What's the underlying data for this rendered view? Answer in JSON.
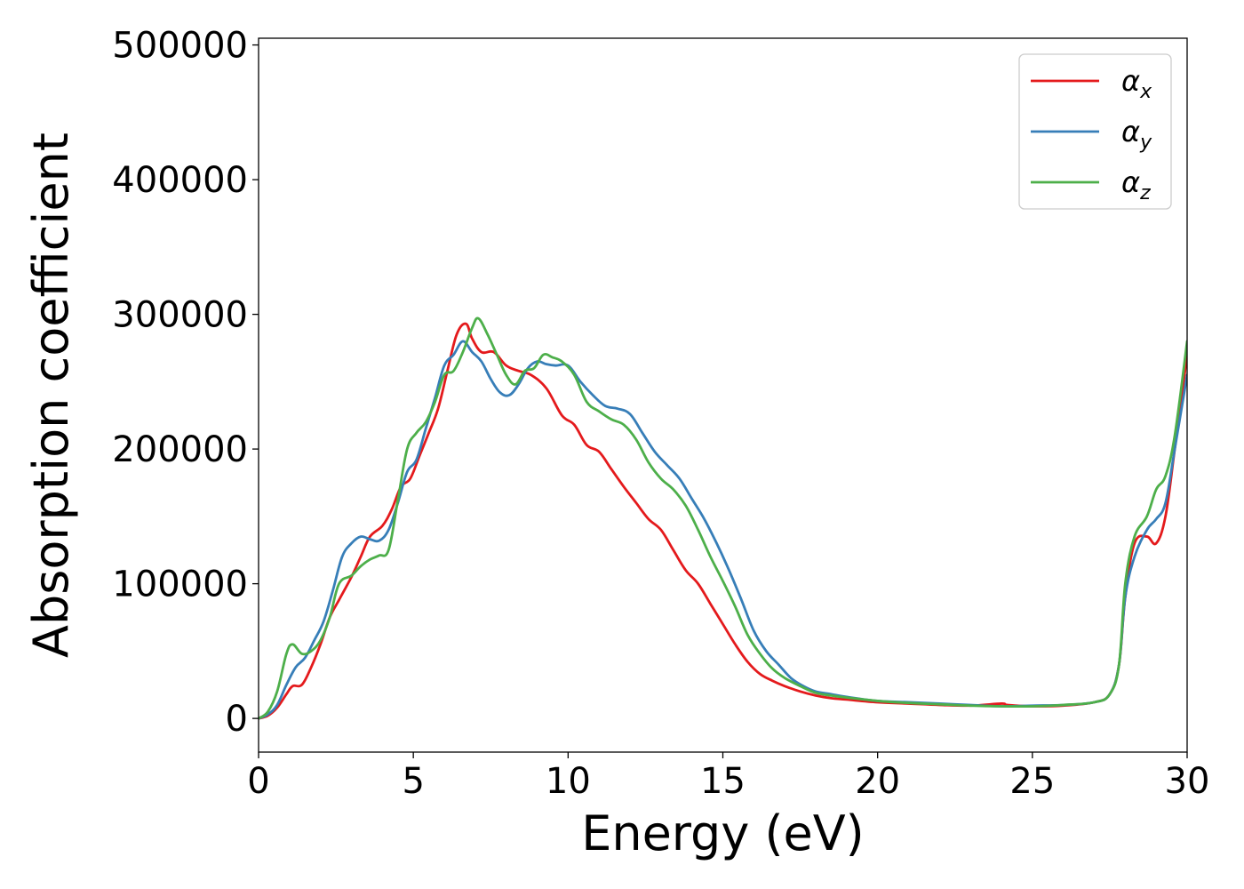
{
  "chart_data": {
    "type": "line",
    "xlabel": "Energy (eV)",
    "ylabel": "Absorption coefficient",
    "xlim": [
      0,
      30
    ],
    "ylim": [
      -25000,
      505000
    ],
    "xticks": [
      0,
      5,
      10,
      15,
      20,
      25,
      30
    ],
    "xtick_labels": [
      "0",
      "5",
      "10",
      "15",
      "20",
      "25",
      "30"
    ],
    "yticks": [
      0,
      100000,
      200000,
      300000,
      400000,
      500000
    ],
    "ytick_labels": [
      "0",
      "100000",
      "200000",
      "300000",
      "400000",
      "500000"
    ],
    "grid": false,
    "legend_position": "top-right",
    "series": [
      {
        "name": "α",
        "subscript": "x",
        "color": "#e41a1c",
        "x": [
          0,
          0.3,
          0.6,
          0.9,
          1.1,
          1.4,
          1.7,
          2.0,
          2.3,
          2.6,
          3.0,
          3.3,
          3.6,
          4.0,
          4.3,
          4.6,
          4.9,
          5.2,
          5.5,
          5.8,
          6.1,
          6.4,
          6.7,
          6.9,
          7.2,
          7.6,
          8.0,
          8.4,
          8.8,
          9.3,
          9.8,
          10.2,
          10.6,
          11.0,
          11.4,
          11.8,
          12.2,
          12.6,
          13.0,
          13.4,
          13.8,
          14.2,
          14.6,
          15.0,
          15.4,
          15.8,
          16.2,
          16.6,
          17.0,
          17.5,
          18.0,
          18.5,
          19.0,
          20.0,
          21.0,
          22.0,
          23.0,
          24.0,
          24.2,
          25.0,
          26.0,
          27.0,
          27.5,
          27.8,
          28.0,
          28.3,
          28.7,
          29.0,
          29.3,
          29.6,
          30.0
        ],
        "values": [
          0,
          2000,
          8000,
          18000,
          24000,
          25000,
          38000,
          55000,
          75000,
          88000,
          105000,
          120000,
          135000,
          143000,
          155000,
          172000,
          178000,
          195000,
          212000,
          230000,
          258000,
          285000,
          293000,
          282000,
          272000,
          272000,
          262000,
          258000,
          255000,
          245000,
          225000,
          218000,
          203000,
          198000,
          185000,
          172000,
          160000,
          148000,
          140000,
          125000,
          110000,
          100000,
          85000,
          70000,
          55000,
          42000,
          33000,
          28000,
          24000,
          20000,
          17000,
          15000,
          14000,
          12000,
          11000,
          10000,
          9500,
          11000,
          10000,
          9000,
          9500,
          12000,
          18000,
          40000,
          90000,
          130000,
          135000,
          130000,
          150000,
          200000,
          270000
        ]
      },
      {
        "name": "α",
        "subscript": "y",
        "color": "#377eb8",
        "x": [
          0,
          0.3,
          0.6,
          0.9,
          1.2,
          1.5,
          1.8,
          2.1,
          2.4,
          2.7,
          3.0,
          3.3,
          3.6,
          3.9,
          4.2,
          4.5,
          4.8,
          5.1,
          5.4,
          5.7,
          6.0,
          6.3,
          6.6,
          6.9,
          7.2,
          7.5,
          7.8,
          8.1,
          8.4,
          8.7,
          9.0,
          9.3,
          9.6,
          10.0,
          10.4,
          10.8,
          11.2,
          11.6,
          12.0,
          12.4,
          12.8,
          13.2,
          13.6,
          14.0,
          14.4,
          14.8,
          15.2,
          15.6,
          16.0,
          16.4,
          16.8,
          17.2,
          17.6,
          18.0,
          18.5,
          19.0,
          20.0,
          21.0,
          22.0,
          23.0,
          24.0,
          25.0,
          26.0,
          27.0,
          27.5,
          27.8,
          28.0,
          28.3,
          28.7,
          29.0,
          29.3,
          29.6,
          30.0
        ],
        "values": [
          0,
          3000,
          10000,
          25000,
          38000,
          45000,
          58000,
          72000,
          95000,
          120000,
          130000,
          135000,
          133000,
          132000,
          140000,
          160000,
          183000,
          192000,
          215000,
          238000,
          262000,
          270000,
          280000,
          272000,
          265000,
          252000,
          242000,
          240000,
          248000,
          260000,
          265000,
          263000,
          262000,
          262000,
          250000,
          240000,
          232000,
          230000,
          226000,
          212000,
          198000,
          188000,
          178000,
          163000,
          148000,
          130000,
          110000,
          88000,
          65000,
          50000,
          40000,
          30000,
          24000,
          20000,
          18000,
          16000,
          13000,
          12000,
          11000,
          10000,
          9000,
          9500,
          10000,
          12000,
          18000,
          40000,
          90000,
          120000,
          140000,
          148000,
          160000,
          200000,
          255000
        ]
      },
      {
        "name": "α",
        "subscript": "z",
        "color": "#4daf4a",
        "x": [
          0,
          0.3,
          0.6,
          0.9,
          1.1,
          1.4,
          1.7,
          2.0,
          2.3,
          2.6,
          3.0,
          3.3,
          3.6,
          3.9,
          4.2,
          4.5,
          4.8,
          5.1,
          5.4,
          5.7,
          6.0,
          6.3,
          6.6,
          6.9,
          7.1,
          7.4,
          7.7,
          8.0,
          8.3,
          8.6,
          8.9,
          9.2,
          9.5,
          9.8,
          10.2,
          10.6,
          11.0,
          11.4,
          11.8,
          12.2,
          12.6,
          13.0,
          13.4,
          13.8,
          14.2,
          14.6,
          15.0,
          15.4,
          15.8,
          16.2,
          16.6,
          17.0,
          17.5,
          18.0,
          18.5,
          19.0,
          20.0,
          21.0,
          22.0,
          23.0,
          24.0,
          25.0,
          26.0,
          27.0,
          27.5,
          27.8,
          28.0,
          28.3,
          28.7,
          29.0,
          29.3,
          29.6,
          30.0
        ],
        "values": [
          0,
          5000,
          20000,
          48000,
          55000,
          48000,
          50000,
          58000,
          75000,
          100000,
          106000,
          113000,
          118000,
          121000,
          125000,
          162000,
          200000,
          212000,
          220000,
          235000,
          255000,
          258000,
          272000,
          290000,
          297000,
          285000,
          270000,
          255000,
          248000,
          258000,
          260000,
          270000,
          268000,
          265000,
          255000,
          235000,
          228000,
          222000,
          218000,
          207000,
          190000,
          178000,
          170000,
          158000,
          140000,
          120000,
          102000,
          83000,
          62000,
          48000,
          37000,
          30000,
          24000,
          19000,
          17000,
          15500,
          13000,
          11500,
          10500,
          9500,
          9000,
          9000,
          10000,
          12000,
          18000,
          40000,
          100000,
          135000,
          150000,
          170000,
          180000,
          210000,
          280000
        ]
      }
    ]
  }
}
